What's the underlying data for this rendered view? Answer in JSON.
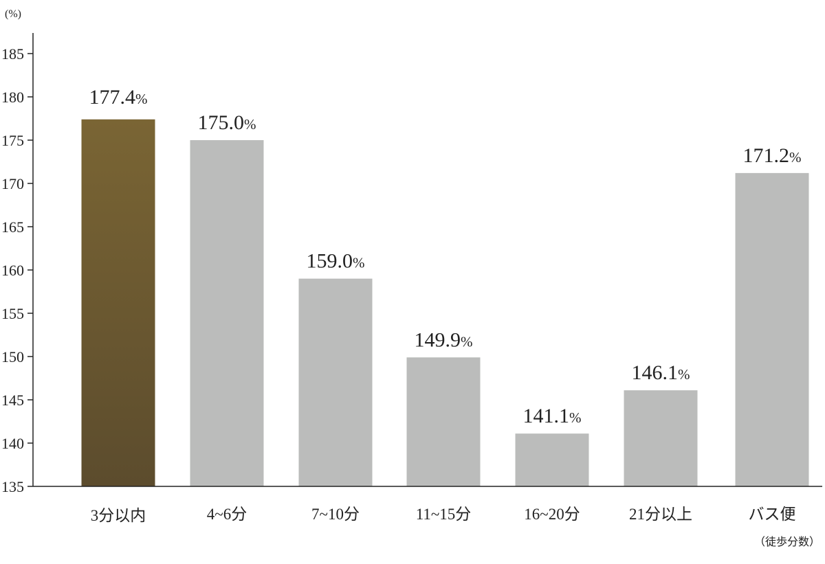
{
  "chart_data": {
    "type": "bar",
    "y_unit_label": "(%)",
    "x_unit_label": "（徒歩分数）",
    "categories": [
      "3分以内",
      "4~6分",
      "7~10分",
      "11~15分",
      "16~20分",
      "21分以上",
      "バス便"
    ],
    "values": [
      177.4,
      175.0,
      159.0,
      149.9,
      141.1,
      146.1,
      171.2
    ],
    "value_labels": [
      "177.4",
      "175.0",
      "159.0",
      "149.9",
      "141.1",
      "146.1",
      "171.2"
    ],
    "value_suffix": "%",
    "highlight_index": 0,
    "ylim": [
      135,
      185
    ],
    "yticks": [
      135,
      140,
      145,
      150,
      155,
      160,
      165,
      170,
      175,
      180,
      185
    ],
    "grid": false,
    "colors": {
      "highlight_top": "#7a6534",
      "highlight_bottom": "#5c4c2d",
      "highlight_text": "#8e6a3e",
      "bar": "#bbbcbb",
      "axis": "#222222"
    }
  }
}
